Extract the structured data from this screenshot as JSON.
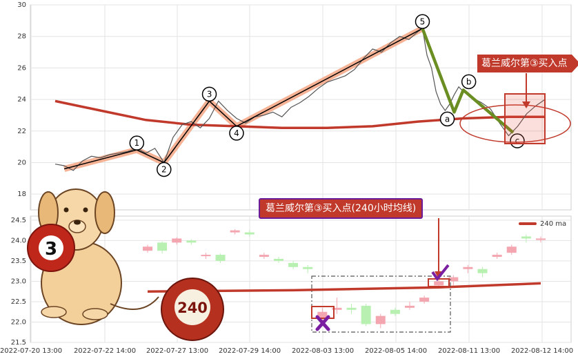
{
  "chart_data": [
    {
      "type": "line",
      "title": "",
      "ylim": [
        17,
        30
      ],
      "y_ticks": [
        "18",
        "20",
        "22",
        "24",
        "26",
        "28",
        "30"
      ],
      "grid": true,
      "series": [
        {
          "values": [
            [
              0,
              19.9
            ],
            [
              2,
              19.8
            ],
            [
              4,
              19.5
            ],
            [
              6,
              20.1
            ],
            [
              8,
              20.4
            ],
            [
              10,
              20.3
            ],
            [
              12,
              20.5
            ],
            [
              14,
              20.6
            ],
            [
              16,
              20.7
            ],
            [
              18,
              20.9
            ],
            [
              20,
              20.6
            ],
            [
              22,
              20.9
            ],
            [
              24,
              20.0
            ],
            [
              26,
              21.6
            ],
            [
              28,
              22.4
            ],
            [
              30,
              22.6
            ],
            [
              32,
              22.2
            ],
            [
              34,
              22.8
            ],
            [
              36,
              23.9
            ],
            [
              38,
              23.3
            ],
            [
              40,
              22.8
            ],
            [
              42,
              22.5
            ],
            [
              44,
              22.9
            ],
            [
              46,
              23.0
            ],
            [
              48,
              23.2
            ],
            [
              50,
              22.9
            ],
            [
              52,
              23.5
            ],
            [
              54,
              23.8
            ],
            [
              56,
              24.2
            ],
            [
              58,
              24.7
            ],
            [
              60,
              25.1
            ],
            [
              62,
              25.3
            ],
            [
              64,
              25.5
            ],
            [
              66,
              25.9
            ],
            [
              68,
              26.6
            ],
            [
              70,
              27.2
            ],
            [
              72,
              27.0
            ],
            [
              74,
              27.6
            ],
            [
              76,
              28.0
            ],
            [
              78,
              27.8
            ],
            [
              80,
              28.3
            ],
            [
              81,
              28.5
            ],
            [
              82,
              26.8
            ],
            [
              83,
              26.0
            ],
            [
              84,
              24.5
            ],
            [
              85,
              23.7
            ],
            [
              86,
              23.3
            ],
            [
              87,
              23.7
            ],
            [
              88,
              24.3
            ],
            [
              89,
              24.8
            ],
            [
              90,
              24.5
            ],
            [
              92,
              24.1
            ],
            [
              94,
              23.8
            ],
            [
              96,
              23.4
            ],
            [
              98,
              22.5
            ],
            [
              100,
              21.7
            ],
            [
              102,
              22.3
            ],
            [
              104,
              23.1
            ],
            [
              106,
              23.6
            ],
            [
              108,
              24.0
            ]
          ]
        },
        {
          "values": [
            [
              0,
              23.9
            ],
            [
              10,
              23.3
            ],
            [
              20,
              22.7
            ],
            [
              30,
              22.4
            ],
            [
              40,
              22.3
            ],
            [
              50,
              22.2
            ],
            [
              60,
              22.2
            ],
            [
              70,
              22.3
            ],
            [
              80,
              22.6
            ],
            [
              90,
              22.8
            ],
            [
              100,
              22.9
            ],
            [
              108,
              22.9
            ]
          ]
        },
        {
          "values": [
            [
              2,
              19.6
            ],
            [
              18,
              20.8
            ],
            [
              24,
              20.0
            ],
            [
              34,
              23.9
            ],
            [
              40,
              22.3
            ],
            [
              81,
              28.5
            ]
          ]
        },
        {
          "values": [
            [
              81,
              28.5
            ],
            [
              88,
              23.2
            ],
            [
              90,
              24.6
            ],
            [
              101,
              21.9
            ]
          ]
        }
      ],
      "wave_labels": [
        "1",
        "2",
        "3",
        "4",
        "5",
        "a",
        "b",
        "c"
      ],
      "colors": {
        "price": "#555555",
        "ma": "#c0392b",
        "impulse_wave": "#000000",
        "impulse_highlight": "#f4a582",
        "correction_wave": "#6b8e23"
      },
      "annotation": "葛兰威尔第③买入点"
    },
    {
      "type": "bar",
      "subtype": "candlestick",
      "x_ticks": [
        "2022-07-20 13:00",
        "2022-07-22 14:00",
        "2022-07-27 13:00",
        "2022-07-29 14:00",
        "2022-08-03 13:00",
        "2022-08-05 14:00",
        "2022-08-11 13:00",
        "2022-08-12 14:00"
      ],
      "y_ticks": [
        "21.5",
        "22.0",
        "22.5",
        "23.0",
        "23.5",
        "24.0",
        "24.5"
      ],
      "ylim": [
        21.5,
        24.6
      ],
      "candles": [
        {
          "t": 0,
          "o": 23.75,
          "c": 23.85,
          "h": 23.9,
          "l": 23.7
        },
        {
          "t": 1,
          "o": 23.95,
          "c": 23.75,
          "h": 23.98,
          "l": 23.68
        },
        {
          "t": 2,
          "o": 23.95,
          "c": 24.05,
          "h": 24.08,
          "l": 23.9
        },
        {
          "t": 3,
          "o": 24.0,
          "c": 23.95,
          "h": 24.03,
          "l": 23.9
        },
        {
          "t": 4,
          "o": 23.65,
          "c": 23.65,
          "h": 23.7,
          "l": 23.55
        },
        {
          "t": 5,
          "o": 23.65,
          "c": 23.5,
          "h": 23.68,
          "l": 23.45
        },
        {
          "t": 6,
          "o": 24.2,
          "c": 24.25,
          "h": 24.28,
          "l": 24.15
        },
        {
          "t": 7,
          "o": 24.2,
          "c": 24.15,
          "h": 24.25,
          "l": 24.1
        },
        {
          "t": 8,
          "o": 23.6,
          "c": 23.65,
          "h": 23.7,
          "l": 23.55
        },
        {
          "t": 9,
          "o": 23.55,
          "c": 23.5,
          "h": 23.6,
          "l": 23.45
        },
        {
          "t": 10,
          "o": 23.45,
          "c": 23.35,
          "h": 23.5,
          "l": 23.3
        },
        {
          "t": 11,
          "o": 23.35,
          "c": 23.3,
          "h": 23.4,
          "l": 23.2
        },
        {
          "t": 12,
          "o": 22.1,
          "c": 22.25,
          "h": 22.35,
          "l": 22.0
        },
        {
          "t": 13,
          "o": 22.3,
          "c": 22.35,
          "h": 22.6,
          "l": 22.2
        },
        {
          "t": 14,
          "o": 22.35,
          "c": 22.3,
          "h": 22.45,
          "l": 22.2
        },
        {
          "t": 15,
          "o": 22.4,
          "c": 21.95,
          "h": 22.45,
          "l": 21.9
        },
        {
          "t": 16,
          "o": 21.95,
          "c": 22.15,
          "h": 22.2,
          "l": 21.85
        },
        {
          "t": 17,
          "o": 22.3,
          "c": 22.2,
          "h": 22.35,
          "l": 22.15
        },
        {
          "t": 18,
          "o": 22.35,
          "c": 22.4,
          "h": 22.5,
          "l": 22.3
        },
        {
          "t": 19,
          "o": 22.5,
          "c": 22.6,
          "h": 22.65,
          "l": 22.45
        },
        {
          "t": 20,
          "o": 22.9,
          "c": 23.0,
          "h": 23.05,
          "l": 22.85
        },
        {
          "t": 21,
          "o": 23.0,
          "c": 23.1,
          "h": 23.15,
          "l": 22.9
        },
        {
          "t": 22,
          "o": 23.3,
          "c": 23.35,
          "h": 23.4,
          "l": 23.2
        },
        {
          "t": 23,
          "o": 23.3,
          "c": 23.2,
          "h": 23.35,
          "l": 23.1
        },
        {
          "t": 24,
          "o": 23.6,
          "c": 23.65,
          "h": 23.7,
          "l": 23.55
        },
        {
          "t": 25,
          "o": 23.7,
          "c": 23.85,
          "h": 23.9,
          "l": 23.65
        },
        {
          "t": 26,
          "o": 24.1,
          "c": 24.05,
          "h": 24.15,
          "l": 23.95
        },
        {
          "t": 27,
          "o": 24.05,
          "c": 24.05,
          "h": 24.1,
          "l": 23.95
        }
      ],
      "ma_series": {
        "name": "240 ma",
        "values": [
          [
            0,
            22.75
          ],
          [
            10,
            22.78
          ],
          [
            20,
            22.85
          ],
          [
            27,
            22.95
          ]
        ]
      },
      "colors": {
        "up": "#f4a6b0",
        "down": "#b7f0b1",
        "ma": "#c0392b"
      },
      "annotation": "葛兰威尔第③买入点(240小时均线)"
    }
  ],
  "ball_labels": [
    "3",
    "240"
  ]
}
